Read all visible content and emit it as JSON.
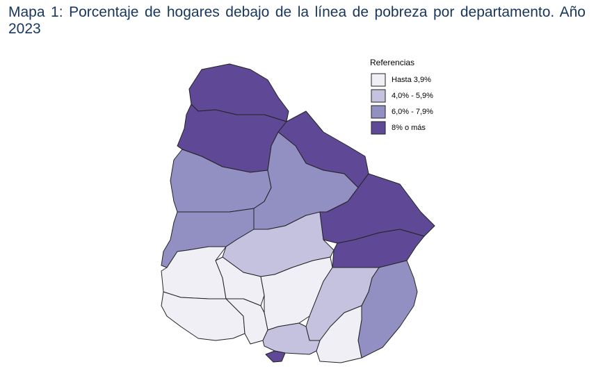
{
  "title": "Mapa 1: Porcentaje de hogares debajo de la línea de pobreza por departamento. Año 2023",
  "legend": {
    "title": "Referencias",
    "items": [
      {
        "label": "Hasta 3,9%",
        "color": "#f0eff6"
      },
      {
        "label": "4,0% - 5,9%",
        "color": "#c5c2e0"
      },
      {
        "label": "6,0% - 7,9%",
        "color": "#928fc3"
      },
      {
        "label": "8% o más",
        "color": "#5f4997"
      }
    ]
  }
}
